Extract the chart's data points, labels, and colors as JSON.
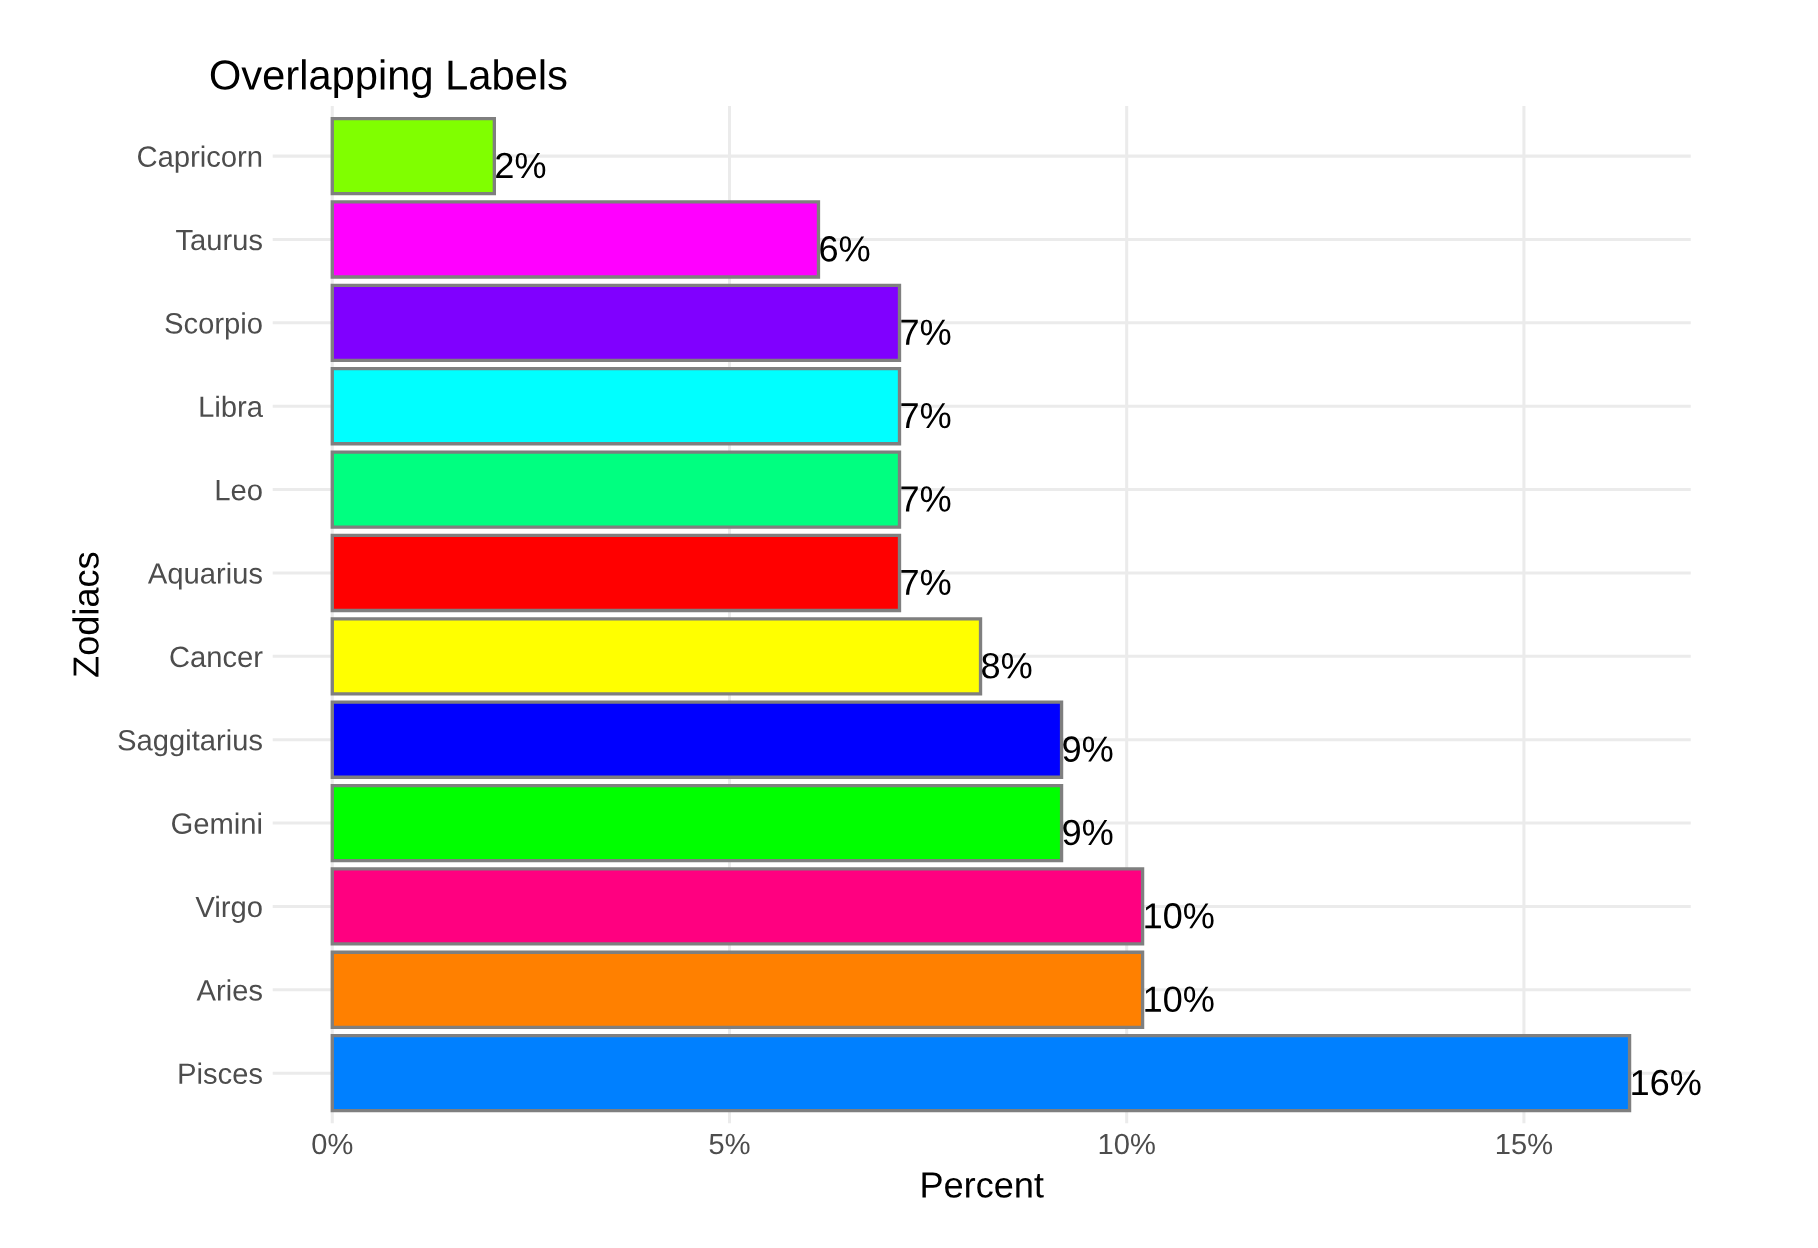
{
  "chart_data": {
    "type": "bar",
    "orientation": "horizontal",
    "title": "Overlapping Labels",
    "xlabel": "Percent",
    "ylabel": "Zodiacs",
    "categories": [
      "Capricorn",
      "Taurus",
      "Scorpio",
      "Libra",
      "Leo",
      "Aquarius",
      "Cancer",
      "Saggitarius",
      "Gemini",
      "Virgo",
      "Aries",
      "Pisces"
    ],
    "values": [
      2.04,
      6.12,
      7.14,
      7.14,
      7.14,
      7.14,
      8.16,
      9.18,
      9.18,
      10.2,
      10.2,
      16.33
    ],
    "value_labels": [
      "2%",
      "6%",
      "7%",
      "7%",
      "7%",
      "7%",
      "8%",
      "9%",
      "9%",
      "10%",
      "10%",
      "16%"
    ],
    "colors": [
      "#80ff00",
      "#ff00ff",
      "#8000ff",
      "#00ffff",
      "#00ff80",
      "#ff0000",
      "#ffff00",
      "#0000ff",
      "#00ff00",
      "#ff0080",
      "#ff8000",
      "#0080ff"
    ],
    "xlim": [
      -0.75,
      17.1
    ],
    "xticks": [
      {
        "value": 0,
        "label": "0%"
      },
      {
        "value": 5,
        "label": "5%"
      },
      {
        "value": 10,
        "label": "10%"
      },
      {
        "value": 15,
        "label": "15%"
      }
    ],
    "grid": true
  }
}
